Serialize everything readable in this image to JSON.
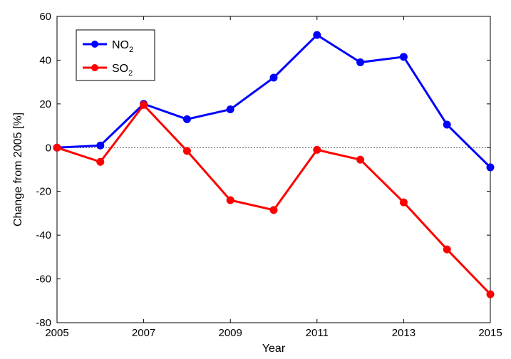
{
  "chart_data": {
    "type": "line",
    "title": "",
    "xlabel": "Year",
    "ylabel": "Change from 2005 [%]",
    "x": [
      2005,
      2006,
      2007,
      2008,
      2009,
      2010,
      2011,
      2012,
      2013,
      2014,
      2015
    ],
    "xlim": [
      2005,
      2015
    ],
    "ylim": [
      -80,
      60
    ],
    "xticks": [
      2005,
      2007,
      2009,
      2011,
      2013,
      2015
    ],
    "yticks": [
      -80,
      -60,
      -40,
      -20,
      0,
      20,
      40,
      60
    ],
    "grid": false,
    "reference_line": {
      "y": 0,
      "style": "dashed"
    },
    "legend_position": "top-left",
    "series": [
      {
        "name": "NO2",
        "name_base": "NO",
        "name_sub": "2",
        "color": "#0000ff",
        "values": [
          0,
          1,
          20,
          13,
          17.5,
          32,
          51.5,
          39,
          41.5,
          10.5,
          -9
        ]
      },
      {
        "name": "SO2",
        "name_base": "SO",
        "name_sub": "2",
        "color": "#ff0000",
        "values": [
          0,
          -6.5,
          19.5,
          -1.5,
          -24,
          -28.5,
          -1,
          -5.5,
          -25,
          -46.5,
          -67
        ]
      }
    ]
  }
}
